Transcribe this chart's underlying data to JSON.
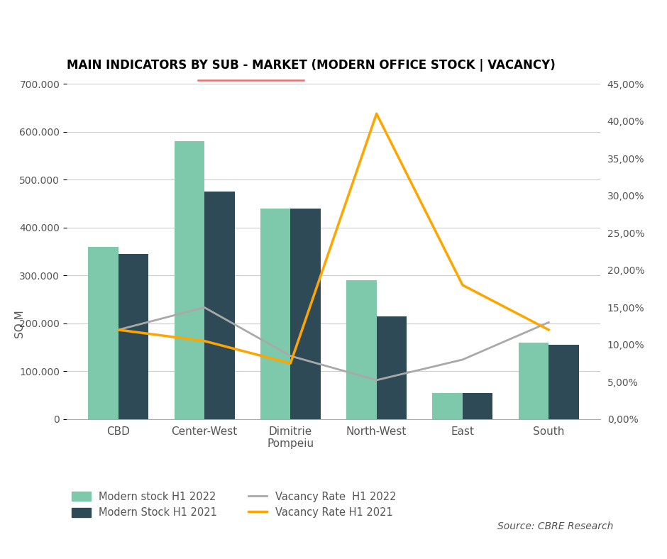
{
  "title": "MAIN INDICATORS BY SUB - MARKET (MODERN OFFICE STOCK | VACANCY)",
  "categories": [
    "CBD",
    "Center-West",
    "Dimitrie\nPompeiu",
    "North-West",
    "East",
    "South"
  ],
  "modern_stock_h1_2022": [
    360000,
    580000,
    440000,
    290000,
    55000,
    160000
  ],
  "modern_stock_h1_2021": [
    345000,
    475000,
    440000,
    215000,
    55000,
    155000
  ],
  "vacancy_rate_h1_2022": [
    0.12,
    0.15,
    0.085,
    0.0525,
    0.08,
    0.13
  ],
  "vacancy_rate_h1_2021": [
    0.12,
    0.105,
    0.075,
    0.41,
    0.18,
    0.12
  ],
  "bar_color_2022": "#7EC8AC",
  "bar_color_2021": "#2E4A56",
  "line_color_2022": "#A9A9A9",
  "line_color_2021": "#FFA500",
  "ylim_left": [
    0,
    700000
  ],
  "ylim_right": [
    0,
    0.45
  ],
  "ylabel_left": "SQ M",
  "source_text": "Source: CBRE Research",
  "legend_labels": [
    "Modern stock H1 2022",
    "Modern Stock H1 2021",
    "Vacancy Rate  H1 2022",
    "Vacancy Rate H1 2021"
  ],
  "background_color": "#FFFFFF",
  "grid_color": "#CCCCCC",
  "title_color": "#000000",
  "tick_color": "#555555",
  "underline_color": "#E87070",
  "figsize": [
    9.4,
    7.88
  ],
  "dpi": 100
}
